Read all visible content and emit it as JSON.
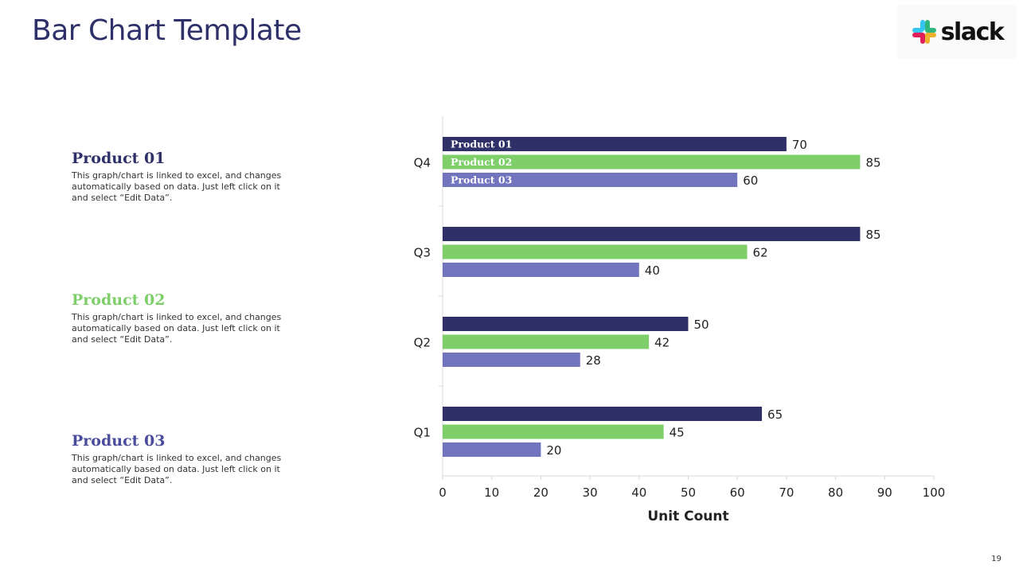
{
  "page": {
    "title": "Bar Chart Template",
    "slide_number": "19",
    "logo_text": "slack"
  },
  "products": [
    {
      "name": "Product 01",
      "description": "This graph/chart is linked to excel, and changes automatically based on data. Just left click on it and select “Edit Data”.",
      "color": "#2e3069"
    },
    {
      "name": "Product 02",
      "description": "This graph/chart is linked to excel, and changes automatically based on data. Just left click on it and select “Edit Data”.",
      "color": "#7ecf6a"
    },
    {
      "name": "Product 03",
      "description": "This graph/chart is linked to excel, and changes automatically based on data. Just left click on it and select “Edit Data”.",
      "color": "#4b4c9c"
    }
  ],
  "chart_data": {
    "type": "bar",
    "orientation": "horizontal",
    "categories": [
      "Q4",
      "Q3",
      "Q2",
      "Q1"
    ],
    "series": [
      {
        "name": "Product 01",
        "color": "#2f3068",
        "values": [
          70,
          85,
          50,
          65
        ]
      },
      {
        "name": "Product 02",
        "color": "#7ecf6a",
        "values": [
          85,
          62,
          42,
          45
        ]
      },
      {
        "name": "Product 03",
        "color": "#7274bd",
        "values": [
          60,
          40,
          28,
          20
        ]
      }
    ],
    "xlabel": "Unit Count",
    "xlim": [
      0,
      100
    ],
    "xticks": [
      0,
      10,
      20,
      30,
      40,
      50,
      60,
      70,
      80,
      90,
      100
    ],
    "series_labels_on_first_category": true,
    "data_labels": true
  }
}
